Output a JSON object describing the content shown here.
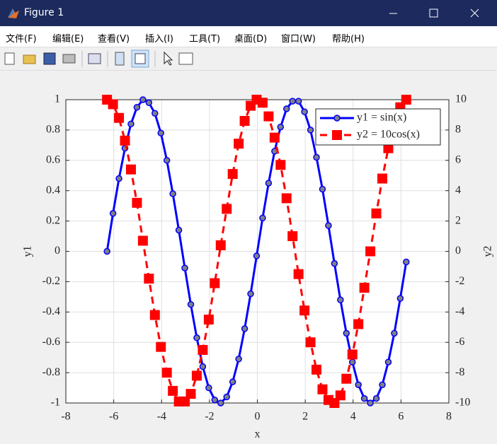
{
  "window": {
    "title": "Figure 1",
    "menu": [
      "文件(F)",
      "编辑(E)",
      "查看(V)",
      "插入(I)",
      "工具(T)",
      "桌面(D)",
      "窗口(W)",
      "帮助(H)"
    ]
  },
  "chart_data": {
    "type": "line",
    "x_label": "x",
    "y_label": "y1",
    "y2_label": "y2",
    "x": [
      -6.28,
      -6.03,
      -5.78,
      -5.53,
      -5.28,
      -5.03,
      -4.78,
      -4.53,
      -4.28,
      -4.03,
      -3.78,
      -3.53,
      -3.28,
      -3.03,
      -2.78,
      -2.53,
      -2.28,
      -2.03,
      -1.78,
      -1.53,
      -1.28,
      -1.03,
      -0.78,
      -0.53,
      -0.28,
      -0.03,
      0.22,
      0.47,
      0.72,
      0.97,
      1.22,
      1.47,
      1.72,
      1.97,
      2.22,
      2.47,
      2.72,
      2.97,
      3.22,
      3.47,
      3.72,
      3.97,
      4.22,
      4.47,
      4.72,
      4.97,
      5.22,
      5.47,
      5.72,
      5.97,
      6.22
    ],
    "series": [
      {
        "name": "y1 = sin(x)",
        "color": "#0000ff",
        "marker": "circle",
        "marker_color": "#808080",
        "line_style": "solid",
        "axis": "y",
        "values": [
          0,
          0.25,
          0.48,
          0.68,
          0.84,
          0.95,
          1,
          0.98,
          0.91,
          0.78,
          0.6,
          0.38,
          0.14,
          -0.11,
          -0.35,
          -0.57,
          -0.76,
          -0.9,
          -0.98,
          -1,
          -0.96,
          -0.86,
          -0.71,
          -0.51,
          -0.28,
          -0.03,
          0.22,
          0.45,
          0.66,
          0.82,
          0.94,
          0.99,
          0.99,
          0.92,
          0.8,
          0.62,
          0.41,
          0.17,
          -0.08,
          -0.32,
          -0.54,
          -0.73,
          -0.88,
          -0.97,
          -1,
          -0.97,
          -0.88,
          -0.73,
          -0.54,
          -0.31,
          -0.07
        ]
      },
      {
        "name": "y2 = 10cos(x)",
        "color": "#ff0000",
        "marker": "square",
        "marker_color": "#ff0000",
        "line_style": "dashed",
        "axis": "y2",
        "values": [
          10,
          9.7,
          8.8,
          7.3,
          5.4,
          3.2,
          0.7,
          -1.8,
          -4.2,
          -6.3,
          -8,
          -9.2,
          -9.9,
          -9.9,
          -9.4,
          -8.2,
          -6.5,
          -4.5,
          -2.1,
          0.4,
          2.8,
          5.1,
          7.1,
          8.6,
          9.6,
          10,
          9.8,
          8.9,
          7.5,
          5.7,
          3.5,
          1,
          -1.5,
          -3.9,
          -6,
          -7.8,
          -9.1,
          -9.8,
          -10,
          -9.5,
          -8.4,
          -6.8,
          -4.8,
          -2.4,
          0,
          2.5,
          4.8,
          6.8,
          8.4,
          9.5,
          10
        ]
      }
    ],
    "xlim": [
      -8,
      8
    ],
    "xticks": [
      -8,
      -6,
      -4,
      -2,
      0,
      2,
      4,
      6,
      8
    ],
    "ylim": [
      -1,
      1
    ],
    "yticks": [
      -1,
      -0.8,
      -0.6,
      -0.4,
      -0.2,
      0,
      0.2,
      0.4,
      0.6,
      0.8,
      1
    ],
    "y2lim": [
      -10,
      10
    ],
    "y2ticks": [
      -10,
      -8,
      -6,
      -4,
      -2,
      0,
      2,
      4,
      6,
      8,
      10
    ],
    "grid": true,
    "legend": "northeast"
  }
}
